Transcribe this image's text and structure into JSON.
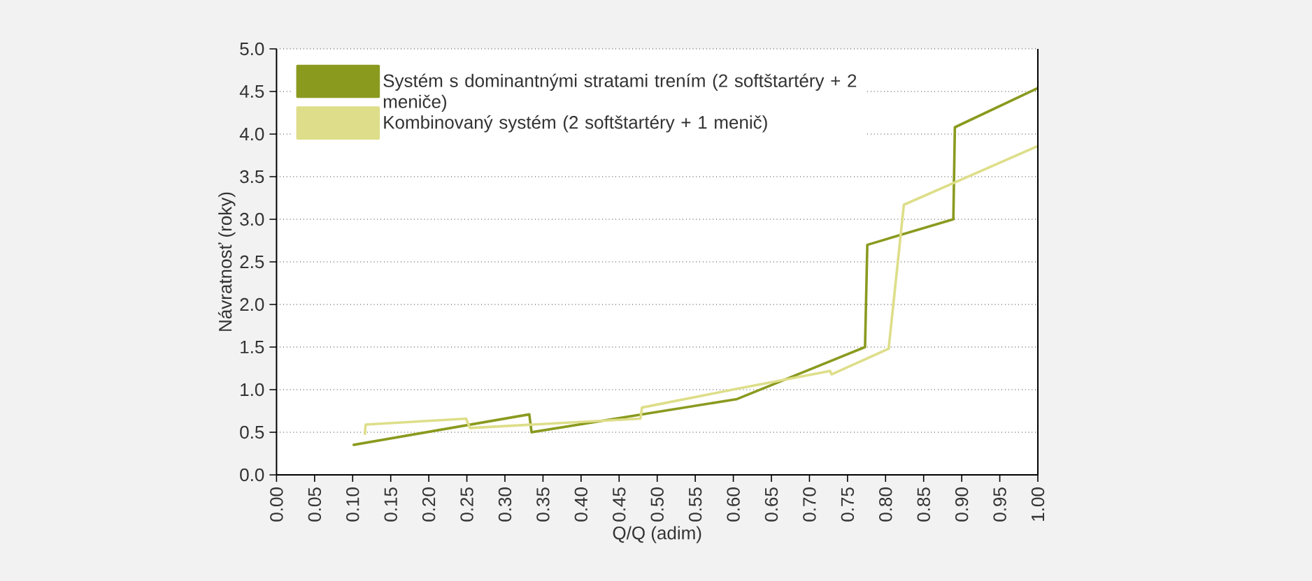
{
  "chart_data": {
    "type": "line",
    "xlabel": "Q/Q (adim)",
    "ylabel": "Návratnosť (roky)",
    "xlim": [
      0,
      1
    ],
    "ylim": [
      0,
      5
    ],
    "xticks": [
      {
        "value": 0,
        "label": "0.00"
      },
      {
        "value": 0.05,
        "label": "0.05"
      },
      {
        "value": 0.1,
        "label": "0.10"
      },
      {
        "value": 0.15,
        "label": "0.15"
      },
      {
        "value": 0.2,
        "label": "0.20"
      },
      {
        "value": 0.25,
        "label": "0.25"
      },
      {
        "value": 0.3,
        "label": "0.30"
      },
      {
        "value": 0.35,
        "label": "0.35"
      },
      {
        "value": 0.4,
        "label": "0.40"
      },
      {
        "value": 0.45,
        "label": "0.45"
      },
      {
        "value": 0.5,
        "label": "0.50"
      },
      {
        "value": 0.55,
        "label": "0.55"
      },
      {
        "value": 0.6,
        "label": "0.60"
      },
      {
        "value": 0.65,
        "label": "0.65"
      },
      {
        "value": 0.7,
        "label": "0.70"
      },
      {
        "value": 0.75,
        "label": "0.75"
      },
      {
        "value": 0.8,
        "label": "0.80"
      },
      {
        "value": 0.85,
        "label": "0.85"
      },
      {
        "value": 0.9,
        "label": "0.90"
      },
      {
        "value": 0.95,
        "label": "0.95"
      },
      {
        "value": 1,
        "label": "1.00"
      }
    ],
    "yticks": [
      {
        "value": 0,
        "label": "0.0"
      },
      0.5,
      {
        "value": 1,
        "label": "1.0"
      },
      1.5,
      {
        "value": 2,
        "label": "2.0"
      },
      2.5,
      {
        "value": 3,
        "label": "3.0"
      },
      3.5,
      {
        "value": 4,
        "label": "4.0"
      },
      4.5,
      {
        "value": 5,
        "label": "5.0"
      }
    ],
    "grid": "y",
    "legend": "top left",
    "marker": "none",
    "line_style": "solid",
    "series": [
      {
        "name": "Systém s dominantnými stratami trením (2 softštartéry + 2 meniče)",
        "color": "#8a9a1f",
        "x": [
          0.1,
          0.332,
          0.335,
          0.605,
          0.773,
          0.776,
          0.889,
          0.891,
          1.0
        ],
        "values": [
          0.35,
          0.71,
          0.5,
          0.89,
          1.5,
          2.7,
          3.0,
          4.08,
          4.54
        ]
      },
      {
        "name": "Kombinovaný systém (2 softštartéry + 1 menič)",
        "color": "#dede8a",
        "x": [
          0.116,
          0.117,
          0.249,
          0.254,
          0.478,
          0.48,
          0.599,
          0.727,
          0.729,
          0.804,
          0.824,
          1.0
        ],
        "values": [
          0.47,
          0.59,
          0.66,
          0.55,
          0.66,
          0.79,
          1.0,
          1.22,
          1.18,
          1.48,
          3.17,
          3.86
        ]
      }
    ]
  }
}
